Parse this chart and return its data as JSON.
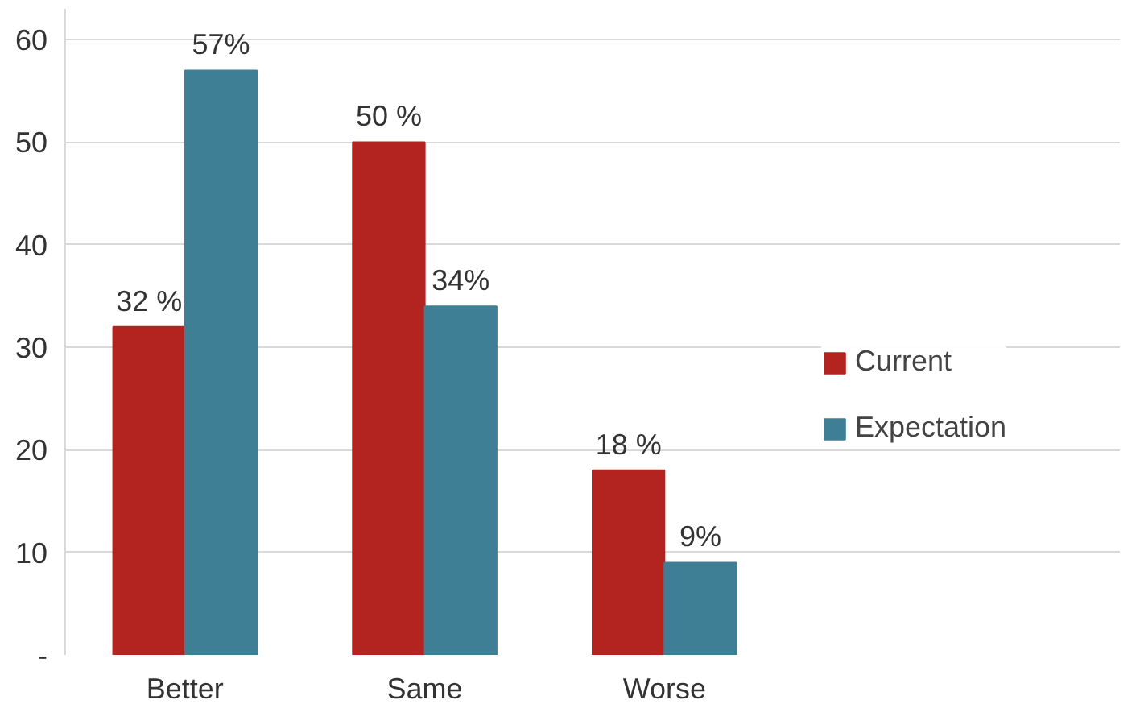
{
  "chart_data": {
    "type": "bar",
    "categories": [
      "Better",
      "Same",
      "Worse"
    ],
    "series": [
      {
        "name": "Current",
        "color": "#b3231f",
        "values": [
          32,
          50,
          18
        ],
        "value_labels": [
          "32 %",
          "50 %",
          "18 %"
        ]
      },
      {
        "name": "Expectation",
        "color": "#3f7f96",
        "values": [
          57,
          34,
          9
        ],
        "value_labels": [
          "57%",
          "34%",
          "9%"
        ]
      }
    ],
    "ylim": [
      0,
      63
    ],
    "yticks": [
      {
        "value": 0,
        "label": "-"
      },
      10,
      20,
      30,
      40,
      50,
      60
    ],
    "grid": "y",
    "legend": "right"
  }
}
